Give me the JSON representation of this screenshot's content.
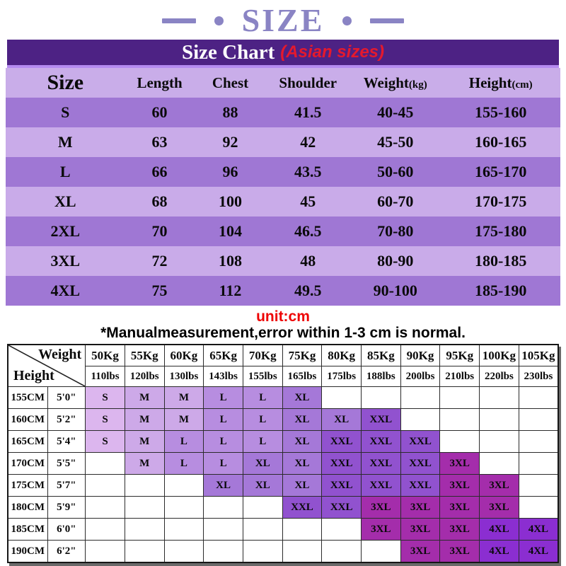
{
  "page": {
    "decor_title": "SIZE",
    "title": "Size Chart",
    "title_suffix": "(Asian sizes)",
    "unit_note": "unit:cm",
    "footnote": "*Manualmeasurement,error within 1-3 cm is normal."
  },
  "colors": {
    "decor_accent": "#8a84c4",
    "title_bar_bg": "#4d2284",
    "title_text": "#ffffff",
    "title_suffix_red": "#e5192d",
    "unit_note_red": "#ee0000",
    "table_header_bg": "#c9ade9",
    "table_row_odd_bg": "#9f77d4",
    "table_row_even_bg": "#c9abe9",
    "size_colors": {
      "S": "#dcb6ee",
      "M": "#cda9e8",
      "L": "#b78de0",
      "XL": "#a578d8",
      "XXL": "#9152cf",
      "3XL": "#a42dab",
      "4XL": "#8b2ed1"
    }
  },
  "size_chart": {
    "headers": [
      {
        "main": "Size",
        "sub": ""
      },
      {
        "main": "Length",
        "sub": ""
      },
      {
        "main": "Chest",
        "sub": ""
      },
      {
        "main": "Shoulder",
        "sub": ""
      },
      {
        "main": "Weight",
        "sub": "(kg)"
      },
      {
        "main": "Height",
        "sub": "(cm)"
      }
    ],
    "rows": [
      {
        "size": "S",
        "length": "60",
        "chest": "88",
        "shoulder": "41.5",
        "weight": "40-45",
        "height": "155-160"
      },
      {
        "size": "M",
        "length": "63",
        "chest": "92",
        "shoulder": "42",
        "weight": "45-50",
        "height": "160-165"
      },
      {
        "size": "L",
        "length": "66",
        "chest": "96",
        "shoulder": "43.5",
        "weight": "50-60",
        "height": "165-170"
      },
      {
        "size": "XL",
        "length": "68",
        "chest": "100",
        "shoulder": "45",
        "weight": "60-70",
        "height": "170-175"
      },
      {
        "size": "2XL",
        "length": "70",
        "chest": "104",
        "shoulder": "46.5",
        "weight": "70-80",
        "height": "175-180"
      },
      {
        "size": "3XL",
        "length": "72",
        "chest": "108",
        "shoulder": "48",
        "weight": "80-90",
        "height": "180-185"
      },
      {
        "size": "4XL",
        "length": "75",
        "chest": "112",
        "shoulder": "49.5",
        "weight": "90-100",
        "height": "185-190"
      }
    ]
  },
  "fit_matrix": {
    "corner": {
      "top_right": "Weight",
      "bottom_left": "Height"
    },
    "weights_kg": [
      "50Kg",
      "55Kg",
      "60Kg",
      "65Kg",
      "70Kg",
      "75Kg",
      "80Kg",
      "85Kg",
      "90Kg",
      "95Kg",
      "100Kg",
      "105Kg"
    ],
    "weights_lbs": [
      "110lbs",
      "120lbs",
      "130lbs",
      "143lbs",
      "155lbs",
      "165lbs",
      "175lbs",
      "188lbs",
      "200lbs",
      "210lbs",
      "220lbs",
      "230lbs"
    ],
    "rows": [
      {
        "height_cm": "155CM",
        "height_ft": "5'0\"",
        "cells": [
          "S",
          "M",
          "M",
          "L",
          "L",
          "XL",
          "",
          "",
          "",
          "",
          "",
          ""
        ]
      },
      {
        "height_cm": "160CM",
        "height_ft": "5'2\"",
        "cells": [
          "S",
          "M",
          "M",
          "L",
          "L",
          "XL",
          "XL",
          "XXL",
          "",
          "",
          "",
          ""
        ]
      },
      {
        "height_cm": "165CM",
        "height_ft": "5'4\"",
        "cells": [
          "S",
          "M",
          "L",
          "L",
          "L",
          "XL",
          "XXL",
          "XXL",
          "XXL",
          "",
          "",
          ""
        ]
      },
      {
        "height_cm": "170CM",
        "height_ft": "5'5\"",
        "cells": [
          "",
          "M",
          "L",
          "L",
          "XL",
          "XL",
          "XXL",
          "XXL",
          "XXL",
          "3XL",
          "",
          ""
        ]
      },
      {
        "height_cm": "175CM",
        "height_ft": "5'7\"",
        "cells": [
          "",
          "",
          "",
          "XL",
          "XL",
          "XL",
          "XXL",
          "XXL",
          "XXL",
          "3XL",
          "3XL",
          ""
        ]
      },
      {
        "height_cm": "180CM",
        "height_ft": "5'9\"",
        "cells": [
          "",
          "",
          "",
          "",
          "",
          "XXL",
          "XXL",
          "3XL",
          "3XL",
          "3XL",
          "3XL",
          ""
        ]
      },
      {
        "height_cm": "185CM",
        "height_ft": "6'0\"",
        "cells": [
          "",
          "",
          "",
          "",
          "",
          "",
          "",
          "3XL",
          "3XL",
          "3XL",
          "4XL",
          "4XL"
        ]
      },
      {
        "height_cm": "190CM",
        "height_ft": "6'2\"",
        "cells": [
          "",
          "",
          "",
          "",
          "",
          "",
          "",
          "",
          "3XL",
          "3XL",
          "4XL",
          "4XL"
        ]
      }
    ]
  }
}
